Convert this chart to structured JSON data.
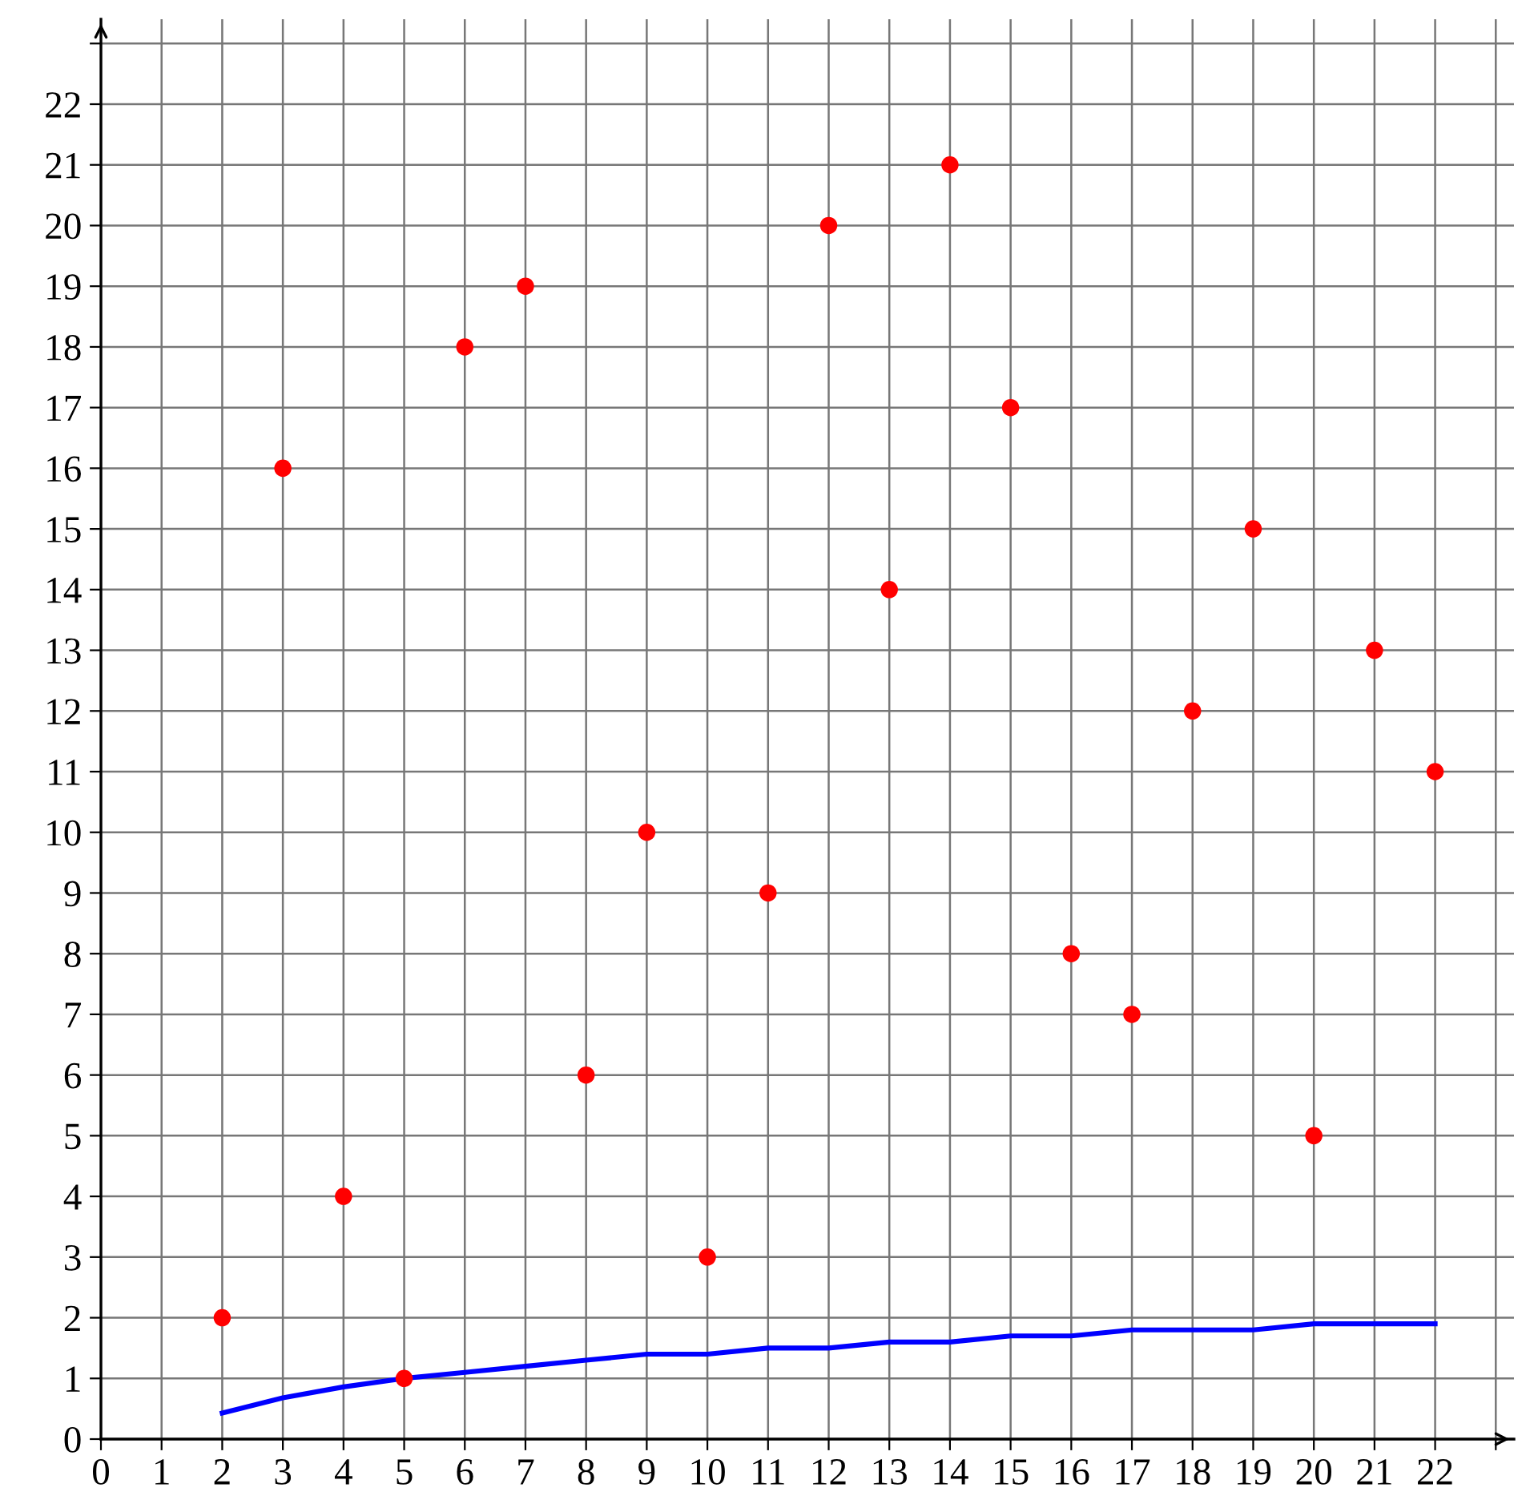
{
  "chart_data": {
    "type": "scatter",
    "x": [
      2,
      3,
      4,
      5,
      6,
      7,
      8,
      9,
      10,
      11,
      12,
      13,
      14,
      15,
      16,
      17,
      18,
      19,
      20,
      21,
      22
    ],
    "series": [
      {
        "type": "scatter",
        "color": "#ff0000",
        "marker": "circle",
        "values": [
          2,
          16,
          4,
          1,
          18,
          19,
          6,
          10,
          3,
          9,
          20,
          14,
          21,
          17,
          8,
          7,
          12,
          15,
          5,
          13,
          11
        ]
      },
      {
        "type": "line",
        "color": "#0000ff",
        "marker": "none",
        "line_style": "solid",
        "values": [
          0.43,
          0.68,
          0.86,
          1.0,
          1.1,
          1.2,
          1.3,
          1.4,
          1.4,
          1.5,
          1.5,
          1.6,
          1.6,
          1.7,
          1.7,
          1.8,
          1.8,
          1.8,
          1.9,
          1.9,
          1.9
        ]
      }
    ],
    "xlim": [
      0,
      23.3
    ],
    "ylim": [
      0,
      23.4
    ],
    "xticks": [
      0,
      1,
      2,
      3,
      4,
      5,
      6,
      7,
      8,
      9,
      10,
      11,
      12,
      13,
      14,
      15,
      16,
      17,
      18,
      19,
      20,
      21,
      22,
      {
        "value": 23,
        "label": null
      }
    ],
    "yticks": [
      0,
      1,
      2,
      3,
      4,
      5,
      6,
      7,
      8,
      9,
      10,
      11,
      12,
      13,
      14,
      15,
      16,
      17,
      18,
      19,
      20,
      21,
      22,
      {
        "value": 23,
        "label": null
      }
    ],
    "grid": true
  }
}
